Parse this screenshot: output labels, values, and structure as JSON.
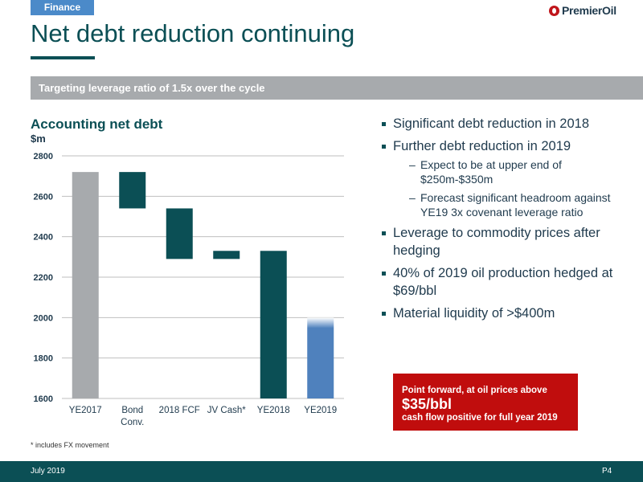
{
  "header": {
    "section_tag": "Finance",
    "logo_text": "PremierOil",
    "title": "Net debt reduction continuing",
    "subtitle": "Targeting leverage ratio of 1.5x over the cycle"
  },
  "colors": {
    "teal": "#0b4f55",
    "grey_bar": "#a7aaad",
    "blue_bar": "#4f81bd",
    "accent_red": "#c00d0d",
    "section_blue": "#4b8ac9"
  },
  "chart_data": {
    "type": "bar",
    "subtype": "waterfall",
    "title": "Accounting net debt",
    "ylabel": "$m",
    "xlabel": "",
    "ylim": [
      1600,
      2800
    ],
    "yticks": [
      1600,
      1800,
      2000,
      2200,
      2400,
      2600,
      2800
    ],
    "grid": true,
    "categories": [
      "YE2017",
      "Bond Conv.",
      "2018 FCF",
      "JV Cash*",
      "YE2018",
      "YE2019"
    ],
    "bars": [
      {
        "category": "YE2017",
        "start": 1600,
        "end": 2720,
        "kind": "total",
        "color": "#a7aaad"
      },
      {
        "category": "Bond Conv.",
        "start": 2720,
        "end": 2540,
        "kind": "change",
        "color": "#0b4f55"
      },
      {
        "category": "2018 FCF",
        "start": 2540,
        "end": 2290,
        "kind": "change",
        "color": "#0b4f55"
      },
      {
        "category": "JV Cash*",
        "start": 2330,
        "end": 2290,
        "kind": "change",
        "color": "#0b4f55"
      },
      {
        "category": "YE2018",
        "start": 1600,
        "end": 2330,
        "kind": "total",
        "color": "#0b4f55"
      },
      {
        "category": "YE2019",
        "start": 1600,
        "end": 2000,
        "kind": "forecast",
        "color": "#4f81bd"
      }
    ]
  },
  "footnote": "* includes FX movement",
  "bullets": [
    {
      "text": "Significant debt reduction in 2018",
      "sub": []
    },
    {
      "text": "Further debt reduction in 2019",
      "sub": [
        "Expect to be at upper end of $250m-$350m",
        "Forecast significant headroom against YE19 3x covenant leverage ratio"
      ]
    },
    {
      "text": "Leverage to commodity prices after hedging",
      "sub": []
    },
    {
      "text": "40% of 2019 oil production hedged at $69/bbl",
      "sub": []
    },
    {
      "text": "Material liquidity of >$400m",
      "sub": []
    }
  ],
  "callout": {
    "line1": "Point forward, at oil prices above",
    "price": "$35/bbl",
    "line3": "cash flow positive for full year 2019"
  },
  "footer": {
    "date": "July 2019",
    "page": "P4"
  }
}
